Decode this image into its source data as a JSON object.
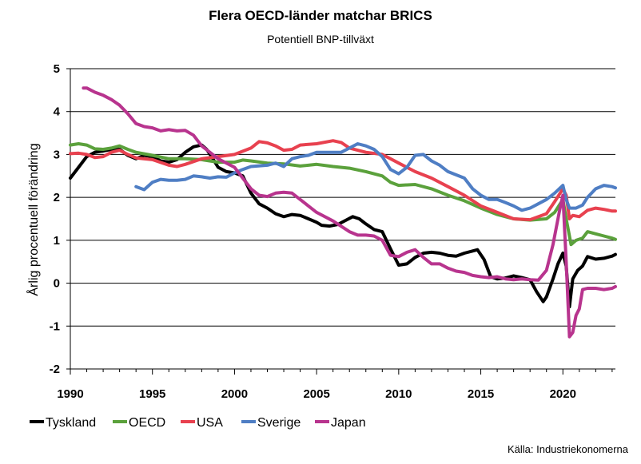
{
  "chart_data": {
    "type": "line",
    "title": "Flera OECD-länder matchar BRICS",
    "subtitle": "Potentiell BNP-tillväxt",
    "xlabel": "",
    "ylabel": "Årlig procentuell förändring",
    "xlim": [
      1990,
      2023.2
    ],
    "ylim": [
      -2,
      5
    ],
    "x_ticks": [
      1990,
      1995,
      2000,
      2005,
      2010,
      2015,
      2020
    ],
    "y_ticks": [
      -2,
      -1,
      0,
      1,
      2,
      3,
      4,
      5
    ],
    "grid": "horizontal",
    "legend_position": "bottom-left",
    "source": "Källa: Industriekonomerna",
    "series": [
      {
        "name": "Tyskland",
        "color": "#000000",
        "points": [
          [
            1990,
            2.45
          ],
          [
            1990.5,
            2.7
          ],
          [
            1991,
            2.95
          ],
          [
            1991.5,
            3.05
          ],
          [
            1992,
            3.08
          ],
          [
            1992.5,
            3.12
          ],
          [
            1993,
            3.12
          ],
          [
            1993.5,
            2.98
          ],
          [
            1994,
            2.9
          ],
          [
            1994.5,
            2.98
          ],
          [
            1995,
            2.95
          ],
          [
            1995.5,
            2.85
          ],
          [
            1996,
            2.82
          ],
          [
            1996.5,
            2.88
          ],
          [
            1997,
            3.05
          ],
          [
            1997.5,
            3.18
          ],
          [
            1998,
            3.22
          ],
          [
            1998.3,
            3.12
          ],
          [
            1998.6,
            2.95
          ],
          [
            1999,
            2.7
          ],
          [
            1999.5,
            2.6
          ],
          [
            2000,
            2.57
          ],
          [
            2000.5,
            2.5
          ],
          [
            2001,
            2.1
          ],
          [
            2001.5,
            1.85
          ],
          [
            2002,
            1.75
          ],
          [
            2002.5,
            1.62
          ],
          [
            2003,
            1.55
          ],
          [
            2003.5,
            1.6
          ],
          [
            2004,
            1.58
          ],
          [
            2004.5,
            1.5
          ],
          [
            2005,
            1.42
          ],
          [
            2005.3,
            1.35
          ],
          [
            2005.8,
            1.33
          ],
          [
            2006.3,
            1.37
          ],
          [
            2006.8,
            1.47
          ],
          [
            2007.2,
            1.55
          ],
          [
            2007.6,
            1.5
          ],
          [
            2008,
            1.38
          ],
          [
            2008.5,
            1.25
          ],
          [
            2009,
            1.2
          ],
          [
            2009.5,
            0.8
          ],
          [
            2010,
            0.42
          ],
          [
            2010.5,
            0.45
          ],
          [
            2011,
            0.6
          ],
          [
            2011.5,
            0.7
          ],
          [
            2012,
            0.72
          ],
          [
            2012.5,
            0.7
          ],
          [
            2013,
            0.65
          ],
          [
            2013.5,
            0.63
          ],
          [
            2014,
            0.7
          ],
          [
            2014.5,
            0.75
          ],
          [
            2014.8,
            0.78
          ],
          [
            2015.2,
            0.55
          ],
          [
            2015.6,
            0.15
          ],
          [
            2016,
            0.1
          ],
          [
            2016.5,
            0.12
          ],
          [
            2017,
            0.17
          ],
          [
            2017.5,
            0.13
          ],
          [
            2018,
            0.08
          ],
          [
            2018.4,
            -0.2
          ],
          [
            2018.8,
            -0.43
          ],
          [
            2019,
            -0.32
          ],
          [
            2019.4,
            0.1
          ],
          [
            2019.7,
            0.45
          ],
          [
            2020,
            0.7
          ],
          [
            2020.2,
            0.4
          ],
          [
            2020.4,
            -0.55
          ],
          [
            2020.6,
            0.1
          ],
          [
            2020.9,
            0.3
          ],
          [
            2021.2,
            0.4
          ],
          [
            2021.5,
            0.62
          ],
          [
            2022,
            0.56
          ],
          [
            2022.5,
            0.58
          ],
          [
            2023,
            0.63
          ],
          [
            2023.2,
            0.67
          ]
        ]
      },
      {
        "name": "OECD",
        "color": "#5ba13c",
        "points": [
          [
            1990,
            3.22
          ],
          [
            1990.5,
            3.25
          ],
          [
            1991,
            3.22
          ],
          [
            1991.5,
            3.13
          ],
          [
            1992,
            3.12
          ],
          [
            1992.5,
            3.15
          ],
          [
            1993,
            3.2
          ],
          [
            1993.5,
            3.12
          ],
          [
            1994,
            3.05
          ],
          [
            1995,
            2.98
          ],
          [
            1996,
            2.9
          ],
          [
            1997,
            2.9
          ],
          [
            1998,
            2.88
          ],
          [
            1999,
            2.82
          ],
          [
            2000,
            2.82
          ],
          [
            2000.5,
            2.87
          ],
          [
            2001,
            2.85
          ],
          [
            2002,
            2.8
          ],
          [
            2003,
            2.78
          ],
          [
            2004,
            2.73
          ],
          [
            2004.5,
            2.75
          ],
          [
            2005,
            2.77
          ],
          [
            2006,
            2.72
          ],
          [
            2007,
            2.68
          ],
          [
            2008,
            2.6
          ],
          [
            2009,
            2.5
          ],
          [
            2009.5,
            2.35
          ],
          [
            2010,
            2.28
          ],
          [
            2011,
            2.3
          ],
          [
            2012,
            2.2
          ],
          [
            2013,
            2.05
          ],
          [
            2014,
            1.92
          ],
          [
            2015,
            1.75
          ],
          [
            2016,
            1.6
          ],
          [
            2017,
            1.5
          ],
          [
            2018,
            1.47
          ],
          [
            2019,
            1.5
          ],
          [
            2019.5,
            1.65
          ],
          [
            2020,
            1.95
          ],
          [
            2020.2,
            1.5
          ],
          [
            2020.5,
            0.9
          ],
          [
            2020.8,
            1.0
          ],
          [
            2021.2,
            1.05
          ],
          [
            2021.5,
            1.2
          ],
          [
            2022,
            1.15
          ],
          [
            2022.5,
            1.1
          ],
          [
            2023,
            1.05
          ],
          [
            2023.2,
            1.02
          ]
        ]
      },
      {
        "name": "USA",
        "color": "#e8414f",
        "points": [
          [
            1990,
            3.02
          ],
          [
            1990.5,
            3.03
          ],
          [
            1991,
            3.0
          ],
          [
            1991.5,
            2.93
          ],
          [
            1992,
            2.95
          ],
          [
            1992.5,
            3.05
          ],
          [
            1993,
            3.1
          ],
          [
            1993.5,
            3.0
          ],
          [
            1994,
            2.92
          ],
          [
            1995,
            2.88
          ],
          [
            1996,
            2.75
          ],
          [
            1996.5,
            2.72
          ],
          [
            1997,
            2.77
          ],
          [
            1998,
            2.9
          ],
          [
            1999,
            2.95
          ],
          [
            2000,
            3.0
          ],
          [
            2001,
            3.15
          ],
          [
            2001.5,
            3.3
          ],
          [
            2002,
            3.27
          ],
          [
            2002.5,
            3.2
          ],
          [
            2003,
            3.1
          ],
          [
            2003.5,
            3.12
          ],
          [
            2004,
            3.22
          ],
          [
            2005,
            3.25
          ],
          [
            2006,
            3.32
          ],
          [
            2006.5,
            3.28
          ],
          [
            2007,
            3.15
          ],
          [
            2008,
            3.05
          ],
          [
            2009,
            3.0
          ],
          [
            2010,
            2.8
          ],
          [
            2011,
            2.6
          ],
          [
            2012,
            2.45
          ],
          [
            2013,
            2.25
          ],
          [
            2014,
            2.05
          ],
          [
            2015,
            1.8
          ],
          [
            2016,
            1.65
          ],
          [
            2017,
            1.5
          ],
          [
            2018,
            1.48
          ],
          [
            2019,
            1.62
          ],
          [
            2019.5,
            1.9
          ],
          [
            2020,
            2.2
          ],
          [
            2020.2,
            2.05
          ],
          [
            2020.4,
            1.5
          ],
          [
            2020.6,
            1.58
          ],
          [
            2021,
            1.55
          ],
          [
            2021.5,
            1.7
          ],
          [
            2022,
            1.75
          ],
          [
            2022.5,
            1.72
          ],
          [
            2023,
            1.68
          ],
          [
            2023.2,
            1.68
          ]
        ]
      },
      {
        "name": "Sverige",
        "color": "#4f7ec4",
        "points": [
          [
            1994,
            2.25
          ],
          [
            1994.5,
            2.18
          ],
          [
            1995,
            2.35
          ],
          [
            1995.5,
            2.42
          ],
          [
            1996,
            2.4
          ],
          [
            1996.5,
            2.4
          ],
          [
            1997,
            2.42
          ],
          [
            1997.5,
            2.5
          ],
          [
            1998,
            2.48
          ],
          [
            1998.5,
            2.45
          ],
          [
            1999,
            2.48
          ],
          [
            1999.5,
            2.47
          ],
          [
            2000,
            2.57
          ],
          [
            2000.5,
            2.65
          ],
          [
            2001,
            2.72
          ],
          [
            2002,
            2.75
          ],
          [
            2002.5,
            2.8
          ],
          [
            2003,
            2.72
          ],
          [
            2003.5,
            2.9
          ],
          [
            2004,
            2.95
          ],
          [
            2004.5,
            2.98
          ],
          [
            2005,
            3.05
          ],
          [
            2005.5,
            3.05
          ],
          [
            2006,
            3.05
          ],
          [
            2006.5,
            3.05
          ],
          [
            2007,
            3.15
          ],
          [
            2007.5,
            3.25
          ],
          [
            2008,
            3.2
          ],
          [
            2008.5,
            3.12
          ],
          [
            2009,
            2.95
          ],
          [
            2009.5,
            2.65
          ],
          [
            2010,
            2.55
          ],
          [
            2010.5,
            2.7
          ],
          [
            2011,
            2.98
          ],
          [
            2011.5,
            3.0
          ],
          [
            2012,
            2.85
          ],
          [
            2012.5,
            2.75
          ],
          [
            2013,
            2.6
          ],
          [
            2014,
            2.45
          ],
          [
            2014.5,
            2.2
          ],
          [
            2015,
            2.05
          ],
          [
            2015.5,
            1.95
          ],
          [
            2016,
            1.95
          ],
          [
            2016.5,
            1.88
          ],
          [
            2017,
            1.8
          ],
          [
            2017.5,
            1.7
          ],
          [
            2018,
            1.75
          ],
          [
            2018.5,
            1.85
          ],
          [
            2019,
            1.95
          ],
          [
            2019.5,
            2.1
          ],
          [
            2020,
            2.28
          ],
          [
            2020.2,
            1.95
          ],
          [
            2020.4,
            1.75
          ],
          [
            2020.8,
            1.75
          ],
          [
            2021.2,
            1.82
          ],
          [
            2021.5,
            2.0
          ],
          [
            2022,
            2.2
          ],
          [
            2022.5,
            2.28
          ],
          [
            2023,
            2.25
          ],
          [
            2023.2,
            2.22
          ]
        ]
      },
      {
        "name": "Japan",
        "color": "#b8348e",
        "points": [
          [
            1990.8,
            4.55
          ],
          [
            1991,
            4.55
          ],
          [
            1991.5,
            4.45
          ],
          [
            1992,
            4.38
          ],
          [
            1992.5,
            4.28
          ],
          [
            1993,
            4.15
          ],
          [
            1993.5,
            3.95
          ],
          [
            1994,
            3.72
          ],
          [
            1994.5,
            3.65
          ],
          [
            1995,
            3.62
          ],
          [
            1995.5,
            3.55
          ],
          [
            1996,
            3.58
          ],
          [
            1996.5,
            3.55
          ],
          [
            1997,
            3.56
          ],
          [
            1997.5,
            3.45
          ],
          [
            1998,
            3.2
          ],
          [
            1998.5,
            3.05
          ],
          [
            1999,
            2.9
          ],
          [
            1999.5,
            2.8
          ],
          [
            2000,
            2.7
          ],
          [
            2000.5,
            2.45
          ],
          [
            2001,
            2.2
          ],
          [
            2001.5,
            2.05
          ],
          [
            2002,
            2.02
          ],
          [
            2002.5,
            2.1
          ],
          [
            2003,
            2.12
          ],
          [
            2003.5,
            2.1
          ],
          [
            2004,
            1.95
          ],
          [
            2004.5,
            1.8
          ],
          [
            2005,
            1.65
          ],
          [
            2006,
            1.45
          ],
          [
            2007,
            1.2
          ],
          [
            2007.5,
            1.12
          ],
          [
            2008,
            1.12
          ],
          [
            2008.5,
            1.1
          ],
          [
            2009,
            1.0
          ],
          [
            2009.5,
            0.65
          ],
          [
            2010,
            0.62
          ],
          [
            2010.5,
            0.72
          ],
          [
            2011,
            0.78
          ],
          [
            2011.5,
            0.6
          ],
          [
            2012,
            0.45
          ],
          [
            2012.5,
            0.45
          ],
          [
            2013,
            0.35
          ],
          [
            2013.5,
            0.28
          ],
          [
            2014,
            0.25
          ],
          [
            2014.5,
            0.18
          ],
          [
            2015,
            0.15
          ],
          [
            2015.5,
            0.13
          ],
          [
            2016,
            0.15
          ],
          [
            2016.5,
            0.1
          ],
          [
            2017,
            0.08
          ],
          [
            2017.5,
            0.1
          ],
          [
            2018,
            0.08
          ],
          [
            2018.5,
            0.07
          ],
          [
            2019,
            0.3
          ],
          [
            2019.4,
            0.9
          ],
          [
            2019.8,
            1.7
          ],
          [
            2020,
            2.05
          ],
          [
            2020.2,
            0.5
          ],
          [
            2020.4,
            -1.25
          ],
          [
            2020.6,
            -1.15
          ],
          [
            2020.8,
            -0.75
          ],
          [
            2021,
            -0.6
          ],
          [
            2021.2,
            -0.15
          ],
          [
            2021.5,
            -0.12
          ],
          [
            2022,
            -0.12
          ],
          [
            2022.5,
            -0.15
          ],
          [
            2023,
            -0.12
          ],
          [
            2023.2,
            -0.08
          ]
        ]
      }
    ]
  }
}
